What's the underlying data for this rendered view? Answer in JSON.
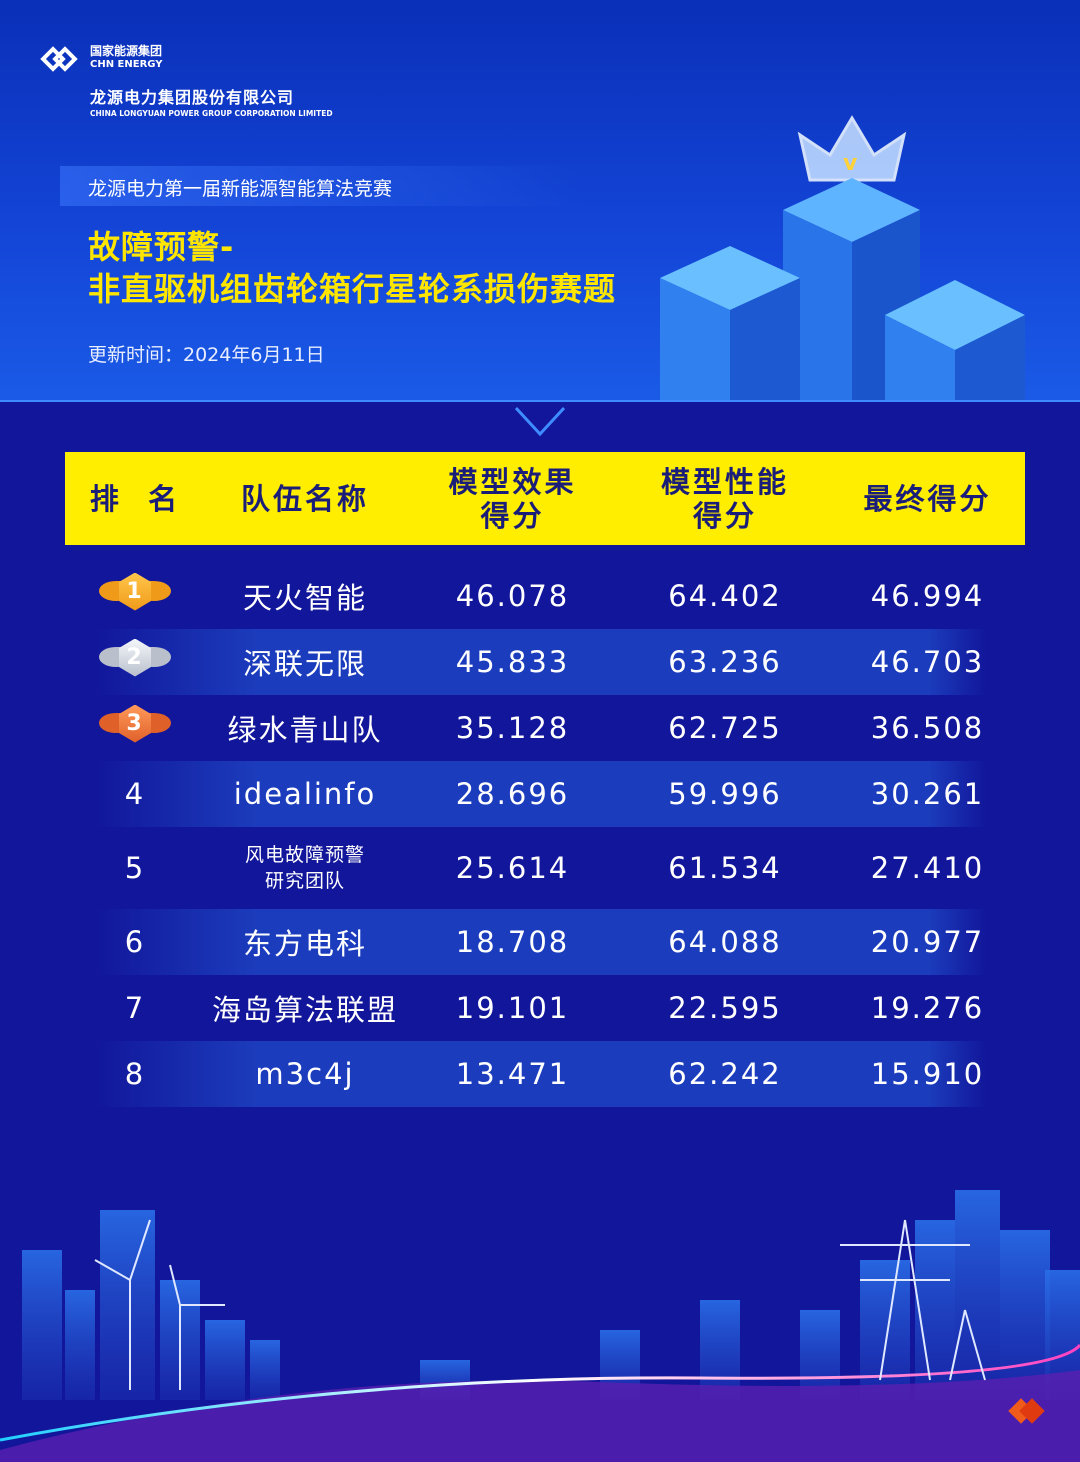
{
  "header": {
    "group_logo_cn": "国家能源集团",
    "group_logo_en": "CHN ENERGY",
    "company_cn": "龙源电力集团股份有限公司",
    "company_en": "CHINA LONGYUAN POWER GROUP CORPORATION LIMITED",
    "subtitle": "龙源电力第一届新能源智能算法竞赛",
    "title_line1": "故障预警-",
    "title_line2": "非直驱机组齿轮箱行星轮系损伤赛题",
    "updated": "更新时间：2024年6月11日"
  },
  "table": {
    "columns": [
      "排  名",
      "队伍名称",
      "模型效果\n得分",
      "模型性能\n得分",
      "最终得分"
    ],
    "rows": [
      {
        "rank": "1",
        "team": "天火智能",
        "effect": "46.078",
        "performance": "64.402",
        "final": "46.994",
        "medal": "gold"
      },
      {
        "rank": "2",
        "team": "深联无限",
        "effect": "45.833",
        "performance": "63.236",
        "final": "46.703",
        "medal": "silver"
      },
      {
        "rank": "3",
        "team": "绿水青山队",
        "effect": "35.128",
        "performance": "62.725",
        "final": "36.508",
        "medal": "bronze"
      },
      {
        "rank": "4",
        "team": "idealinfo",
        "effect": "28.696",
        "performance": "59.996",
        "final": "30.261"
      },
      {
        "rank": "5",
        "team": "风电故障预警\n研究团队",
        "effect": "25.614",
        "performance": "61.534",
        "final": "27.410"
      },
      {
        "rank": "6",
        "team": "东方电科",
        "effect": "18.708",
        "performance": "64.088",
        "final": "20.977"
      },
      {
        "rank": "7",
        "team": "海岛算法联盟",
        "effect": "19.101",
        "performance": "22.595",
        "final": "19.276"
      },
      {
        "rank": "8",
        "team": "m3c4j",
        "effect": "13.471",
        "performance": "62.242",
        "final": "15.910"
      }
    ]
  },
  "colors": {
    "header_yellow": "#ffee00",
    "title_yellow": "#ffe600",
    "background": "#12169a",
    "stripe": "#1b3cbc",
    "gold": "#f5a623",
    "silver": "#d9dde6",
    "bronze": "#f07a3a"
  }
}
